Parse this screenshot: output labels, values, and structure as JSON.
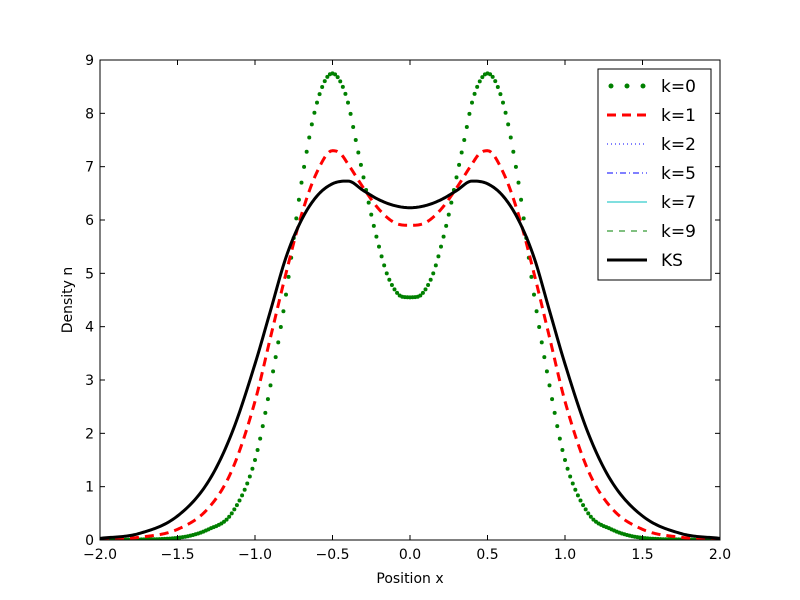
{
  "chart_data": {
    "type": "line",
    "title": "",
    "xlabel": "Position x",
    "ylabel": "Density n",
    "xlim": [
      -2.0,
      2.0
    ],
    "ylim": [
      0,
      9
    ],
    "x_ticks": [
      "−2.0",
      "−1.5",
      "−1.0",
      "−0.5",
      "0.0",
      "0.5",
      "1.0",
      "1.5",
      "2.0"
    ],
    "y_ticks": [
      "0",
      "1",
      "2",
      "3",
      "4",
      "5",
      "6",
      "7",
      "8",
      "9"
    ],
    "grid": false,
    "legend_position": "top-right",
    "series": [
      {
        "name": "k=0",
        "style": "dotted-markers",
        "color": "#008000",
        "x": [
          -2.0,
          -1.75,
          -1.5,
          -1.3,
          -1.15,
          -1.0,
          -0.9,
          -0.8,
          -0.7,
          -0.6,
          -0.5,
          -0.45,
          -0.4,
          -0.35,
          -0.3,
          -0.25,
          -0.2,
          -0.15,
          -0.1,
          -0.05,
          0.0,
          0.05,
          0.1,
          0.15,
          0.2,
          0.25,
          0.3,
          0.35,
          0.4,
          0.45,
          0.5,
          0.6,
          0.7,
          0.8,
          0.9,
          1.0,
          1.15,
          1.3,
          1.5,
          1.75,
          2.0
        ],
        "y": [
          0.0,
          0.01,
          0.04,
          0.2,
          0.5,
          1.5,
          2.9,
          4.6,
          6.7,
          8.2,
          8.75,
          8.6,
          8.2,
          7.5,
          6.8,
          6.1,
          5.5,
          5.0,
          4.7,
          4.56,
          4.55,
          4.56,
          4.7,
          5.0,
          5.5,
          6.1,
          6.8,
          7.5,
          8.2,
          8.6,
          8.75,
          8.2,
          6.7,
          4.6,
          2.9,
          1.5,
          0.5,
          0.2,
          0.04,
          0.01,
          0.0
        ]
      },
      {
        "name": "k=1",
        "style": "dashed",
        "color": "#ff0000",
        "x": [
          -2.0,
          -1.75,
          -1.5,
          -1.3,
          -1.15,
          -1.0,
          -0.9,
          -0.8,
          -0.7,
          -0.6,
          -0.5,
          -0.45,
          -0.4,
          -0.3,
          -0.2,
          -0.1,
          0.0,
          0.1,
          0.2,
          0.3,
          0.4,
          0.45,
          0.5,
          0.6,
          0.7,
          0.8,
          0.9,
          1.0,
          1.15,
          1.3,
          1.5,
          1.75,
          2.0
        ],
        "y": [
          0.01,
          0.05,
          0.2,
          0.6,
          1.3,
          2.6,
          3.8,
          5.0,
          6.1,
          6.9,
          7.3,
          7.25,
          7.05,
          6.6,
          6.2,
          5.95,
          5.9,
          5.95,
          6.2,
          6.6,
          7.05,
          7.25,
          7.3,
          6.9,
          6.1,
          5.0,
          3.8,
          2.6,
          1.3,
          0.6,
          0.2,
          0.05,
          0.01
        ]
      },
      {
        "name": "k=2",
        "style": "dotted",
        "color": "#0000ff",
        "x": [],
        "y": []
      },
      {
        "name": "k=5",
        "style": "dashdot",
        "color": "#0000ff",
        "x": [],
        "y": []
      },
      {
        "name": "k=7",
        "style": "solid-thin",
        "color": "#00bfbf",
        "x": [],
        "y": []
      },
      {
        "name": "k=9",
        "style": "dashed-thin",
        "color": "#008000",
        "x": [],
        "y": []
      },
      {
        "name": "KS",
        "style": "solid-thick",
        "color": "#000000",
        "x": [
          -2.0,
          -1.75,
          -1.5,
          -1.3,
          -1.15,
          -1.0,
          -0.9,
          -0.8,
          -0.7,
          -0.6,
          -0.5,
          -0.4,
          -0.3,
          -0.2,
          -0.1,
          0.0,
          0.1,
          0.2,
          0.3,
          0.4,
          0.5,
          0.6,
          0.7,
          0.8,
          0.9,
          1.0,
          1.15,
          1.3,
          1.5,
          1.75,
          2.0
        ],
        "y": [
          0.03,
          0.12,
          0.45,
          1.1,
          2.0,
          3.3,
          4.3,
          5.3,
          6.0,
          6.45,
          6.68,
          6.73,
          6.55,
          6.38,
          6.27,
          6.23,
          6.27,
          6.38,
          6.55,
          6.73,
          6.68,
          6.45,
          6.0,
          5.3,
          4.3,
          3.3,
          2.0,
          1.1,
          0.45,
          0.12,
          0.03
        ]
      }
    ]
  }
}
